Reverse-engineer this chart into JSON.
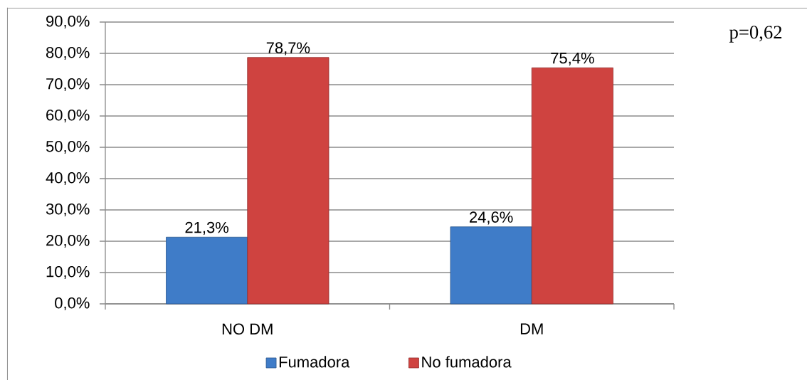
{
  "chart_data": {
    "type": "bar",
    "categories": [
      "NO DM",
      "DM"
    ],
    "series": [
      {
        "name": "Fumadora",
        "color": "#3f7cc8",
        "values": [
          21.3,
          24.6
        ],
        "value_labels": [
          "21,3%",
          "24,6%"
        ]
      },
      {
        "name": "No fumadora",
        "color": "#cf4340",
        "values": [
          78.7,
          75.4
        ],
        "value_labels": [
          "78,7%",
          "75,4%"
        ]
      }
    ],
    "ylim": [
      0,
      90
    ],
    "yticks": [
      {
        "value": 0,
        "label": "0,0%"
      },
      {
        "value": 10,
        "label": "10,0%"
      },
      {
        "value": 20,
        "label": "20,0%"
      },
      {
        "value": 30,
        "label": "30,0%"
      },
      {
        "value": 40,
        "label": "40,0%"
      },
      {
        "value": 50,
        "label": "50,0%"
      },
      {
        "value": 60,
        "label": "60,0%"
      },
      {
        "value": 70,
        "label": "70,0%"
      },
      {
        "value": 80,
        "label": "80,0%"
      },
      {
        "value": 90,
        "label": "90,0%"
      }
    ],
    "grid": "y",
    "legend": "bottom",
    "annotations": [
      "p=0,62"
    ]
  }
}
